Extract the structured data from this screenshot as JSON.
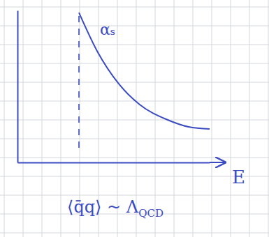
{
  "chart_data": {
    "type": "line",
    "x": [
      3.2,
      4.18,
      5.27,
      6.36,
      7.82,
      8.91,
      10
    ],
    "series": [
      {
        "name": "αₛ",
        "color": "#3b4cc0",
        "line_style": "solid",
        "values": [
          9.86,
          7.25,
          5.18,
          3.81,
          2.8,
          2.34,
          2.2
        ]
      }
    ],
    "xlabel": "E",
    "annotations": [
      "⟨q̄q⟩ ~ ΛQCD"
    ],
    "vlines": [
      3.2
    ],
    "xlim": [
      0,
      10
    ],
    "ylim": [
      0,
      10
    ],
    "tick_labels": false
  }
}
